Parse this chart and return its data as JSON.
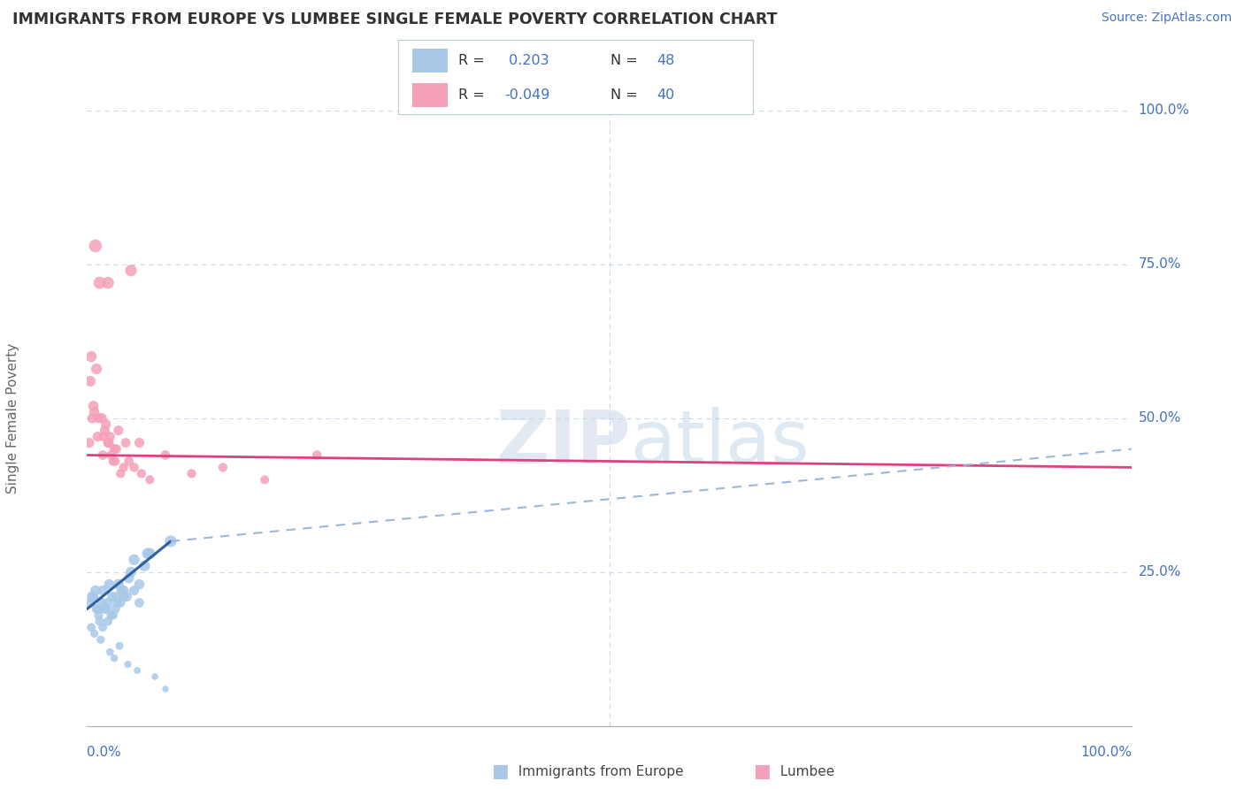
{
  "title": "IMMIGRANTS FROM EUROPE VS LUMBEE SINGLE FEMALE POVERTY CORRELATION CHART",
  "source": "Source: ZipAtlas.com",
  "ylabel": "Single Female Poverty",
  "legend_blue_r": "R =  0.203",
  "legend_blue_n": "N = 48",
  "legend_pink_r": "R = -0.049",
  "legend_pink_n": "N = 40",
  "legend_blue_label": "Immigrants from Europe",
  "legend_pink_label": "Lumbee",
  "blue_color": "#a8c8e8",
  "pink_color": "#f4a0b8",
  "blue_line_color": "#3060a0",
  "pink_line_color": "#e04080",
  "title_color": "#333333",
  "axis_color": "#4472c4",
  "grid_color": "#c8d8e8",
  "background_color": "#ffffff",
  "blue_scatter_x": [
    0.5,
    1.0,
    1.5,
    2.0,
    2.5,
    3.0,
    3.5,
    4.0,
    4.5,
    5.0,
    1.2,
    1.8,
    2.3,
    2.8,
    3.2,
    0.8,
    1.5,
    2.1,
    2.7,
    3.5,
    4.2,
    5.5,
    6.0,
    0.3,
    0.6,
    0.9,
    1.1,
    1.4,
    1.7,
    2.0,
    2.4,
    2.9,
    3.3,
    3.8,
    4.5,
    5.0,
    5.8,
    8.0,
    0.4,
    0.7,
    1.3,
    2.2,
    2.6,
    3.1,
    3.9,
    4.8,
    6.5,
    7.5
  ],
  "blue_scatter_y": [
    21,
    19,
    22,
    20,
    18,
    23,
    21,
    24,
    22,
    20,
    17,
    19,
    18,
    21,
    20,
    22,
    16,
    23,
    19,
    22,
    25,
    26,
    28,
    20,
    21,
    19,
    18,
    20,
    19,
    17,
    21,
    20,
    22,
    21,
    27,
    23,
    28,
    30,
    16,
    15,
    14,
    12,
    11,
    13,
    10,
    9,
    8,
    6
  ],
  "blue_scatter_sizes": [
    80,
    60,
    70,
    65,
    55,
    75,
    65,
    70,
    65,
    60,
    55,
    60,
    55,
    65,
    60,
    70,
    50,
    70,
    60,
    70,
    75,
    80,
    85,
    65,
    70,
    60,
    55,
    65,
    60,
    55,
    65,
    60,
    70,
    65,
    80,
    70,
    85,
    90,
    50,
    45,
    45,
    40,
    38,
    42,
    35,
    32,
    30,
    28
  ],
  "pink_scatter_x": [
    0.5,
    1.0,
    1.5,
    2.0,
    2.5,
    0.8,
    1.2,
    0.3,
    0.6,
    1.8,
    2.2,
    2.8,
    3.5,
    5.0,
    7.5,
    10.0,
    0.4,
    0.9,
    1.4,
    1.7,
    2.3,
    2.7,
    3.2,
    4.0,
    0.2,
    0.7,
    1.1,
    1.6,
    2.1,
    2.6,
    3.0,
    3.7,
    4.5,
    5.2,
    6.0,
    2.0,
    4.2,
    13.0,
    17.0,
    22.0
  ],
  "pink_scatter_y": [
    50,
    47,
    44,
    46,
    43,
    78,
    72,
    56,
    52,
    49,
    47,
    45,
    42,
    46,
    44,
    41,
    60,
    58,
    50,
    48,
    44,
    43,
    41,
    43,
    46,
    51,
    50,
    47,
    46,
    45,
    48,
    46,
    42,
    41,
    40,
    72,
    74,
    42,
    40,
    44
  ],
  "pink_scatter_sizes": [
    70,
    65,
    60,
    65,
    58,
    110,
    100,
    75,
    70,
    65,
    62,
    60,
    55,
    65,
    60,
    55,
    80,
    78,
    68,
    65,
    60,
    58,
    55,
    60,
    65,
    70,
    68,
    65,
    62,
    60,
    65,
    62,
    58,
    55,
    53,
    95,
    90,
    55,
    52,
    58
  ],
  "xlim": [
    0,
    100
  ],
  "ylim": [
    0,
    100
  ],
  "blue_line_x0": 0,
  "blue_line_y0": 19,
  "blue_line_x1": 8,
  "blue_line_y1": 30,
  "blue_dash_x0": 8,
  "blue_dash_y0": 30,
  "blue_dash_x1": 100,
  "blue_dash_y1": 45,
  "pink_line_x0": 0,
  "pink_line_y0": 44,
  "pink_line_x1": 100,
  "pink_line_y1": 42
}
